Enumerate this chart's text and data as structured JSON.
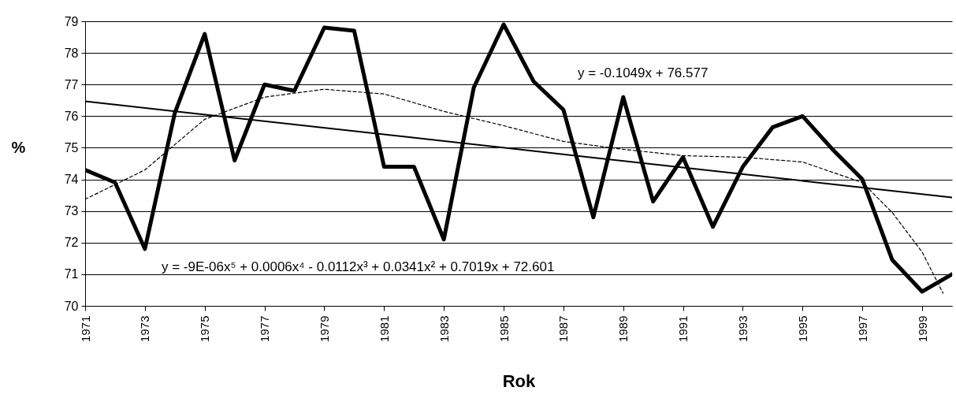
{
  "chart_data": {
    "type": "line",
    "xlabel": "Rok",
    "ylabel": "%",
    "x": [
      1971,
      1972,
      1973,
      1974,
      1975,
      1976,
      1977,
      1978,
      1979,
      1980,
      1981,
      1982,
      1983,
      1984,
      1985,
      1986,
      1987,
      1988,
      1989,
      1990,
      1991,
      1992,
      1993,
      1994,
      1995,
      1996,
      1997,
      1998,
      1999,
      2000
    ],
    "series": [
      {
        "color": "#000000",
        "values": [
          74.3,
          73.9,
          71.8,
          76.1,
          78.6,
          74.6,
          77.0,
          76.8,
          78.8,
          78.7,
          74.4,
          74.4,
          72.1,
          76.9,
          78.9,
          77.1,
          76.2,
          72.8,
          76.6,
          73.3,
          74.7,
          72.5,
          74.4,
          75.65,
          76.0,
          74.95,
          74.0,
          71.45,
          70.45,
          71.0
        ]
      },
      {
        "type": "line",
        "color": "#000000",
        "x": [
          1971,
          2000
        ],
        "values": [
          76.47,
          73.43
        ]
      },
      {
        "type": "line",
        "color": "#000000",
        "line_style": "dashed",
        "x": [
          1971,
          1973,
          1975,
          1977,
          1979,
          1981,
          1983,
          1985,
          1987,
          1989,
          1991,
          1993,
          1995,
          1997,
          1998,
          1999,
          1999.7
        ],
        "values": [
          73.37,
          74.3,
          75.9,
          76.6,
          76.85,
          76.7,
          76.15,
          75.7,
          75.2,
          74.95,
          74.75,
          74.7,
          74.55,
          73.9,
          72.95,
          71.7,
          70.4
        ]
      }
    ],
    "annotations": [
      "y = -0.1049x + 76.577",
      "y = -9E-06x⁵ + 0.0006x⁴ - 0.0112x³ + 0.0341x² + 0.7019x + 72.601"
    ],
    "xlim": [
      1971,
      2000
    ],
    "xticks": [
      1971,
      1973,
      1975,
      1977,
      1979,
      1981,
      1983,
      1985,
      1987,
      1989,
      1991,
      1993,
      1995,
      1997,
      1999
    ],
    "ylim": [
      70,
      79
    ],
    "yticks": [
      70,
      71,
      72,
      73,
      74,
      75,
      76,
      77,
      78,
      79
    ],
    "grid": "y",
    "marker": "none",
    "line_style": "solid"
  }
}
